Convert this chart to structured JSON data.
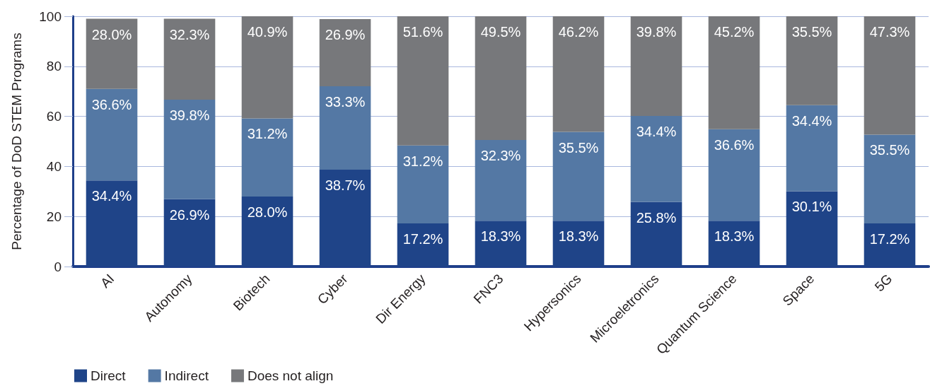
{
  "chart_data": {
    "type": "bar",
    "stacked": true,
    "ylabel": "Percentage of DoD STEM Programs",
    "categories": [
      "AI",
      "Autonomy",
      "Biotech",
      "Cyber",
      "Dir Energy",
      "FNC3",
      "Hypersonics",
      "Microeletronics",
      "Quantum Science",
      "Space",
      "5G"
    ],
    "series": [
      {
        "name": "Direct",
        "color": "#1f4488",
        "values": [
          34.4,
          26.9,
          28.0,
          38.7,
          17.2,
          18.3,
          18.3,
          25.8,
          18.3,
          30.1,
          17.2
        ],
        "value_labels": [
          "34.4%",
          "26.9%",
          "28.0%",
          "38.7%",
          "17.2%",
          "18.3%",
          "18.3%",
          "25.8%",
          "18.3%",
          "30.1%",
          "17.2%"
        ]
      },
      {
        "name": "Indirect",
        "color": "#5478a4",
        "values": [
          36.6,
          39.8,
          31.2,
          33.3,
          31.2,
          32.3,
          35.5,
          34.4,
          36.6,
          34.4,
          35.5
        ],
        "value_labels": [
          "36.6%",
          "39.8%",
          "31.2%",
          "33.3%",
          "31.2%",
          "32.3%",
          "35.5%",
          "34.4%",
          "36.6%",
          "34.4%",
          "35.5%"
        ]
      },
      {
        "name": "Does not align",
        "color": "#77787b",
        "values": [
          28.0,
          32.3,
          40.9,
          26.9,
          51.6,
          49.5,
          46.2,
          39.8,
          45.2,
          35.5,
          47.3
        ],
        "value_labels": [
          "28.0%",
          "32.3%",
          "40.9%",
          "26.9%",
          "51.6%",
          "49.5%",
          "46.2%",
          "39.8%",
          "45.2%",
          "35.5%",
          "47.3%"
        ]
      }
    ],
    "ylim": [
      0,
      100
    ],
    "yticks": [
      0,
      20,
      40,
      60,
      80,
      100
    ],
    "grid": "y",
    "legend": "bottom left"
  }
}
